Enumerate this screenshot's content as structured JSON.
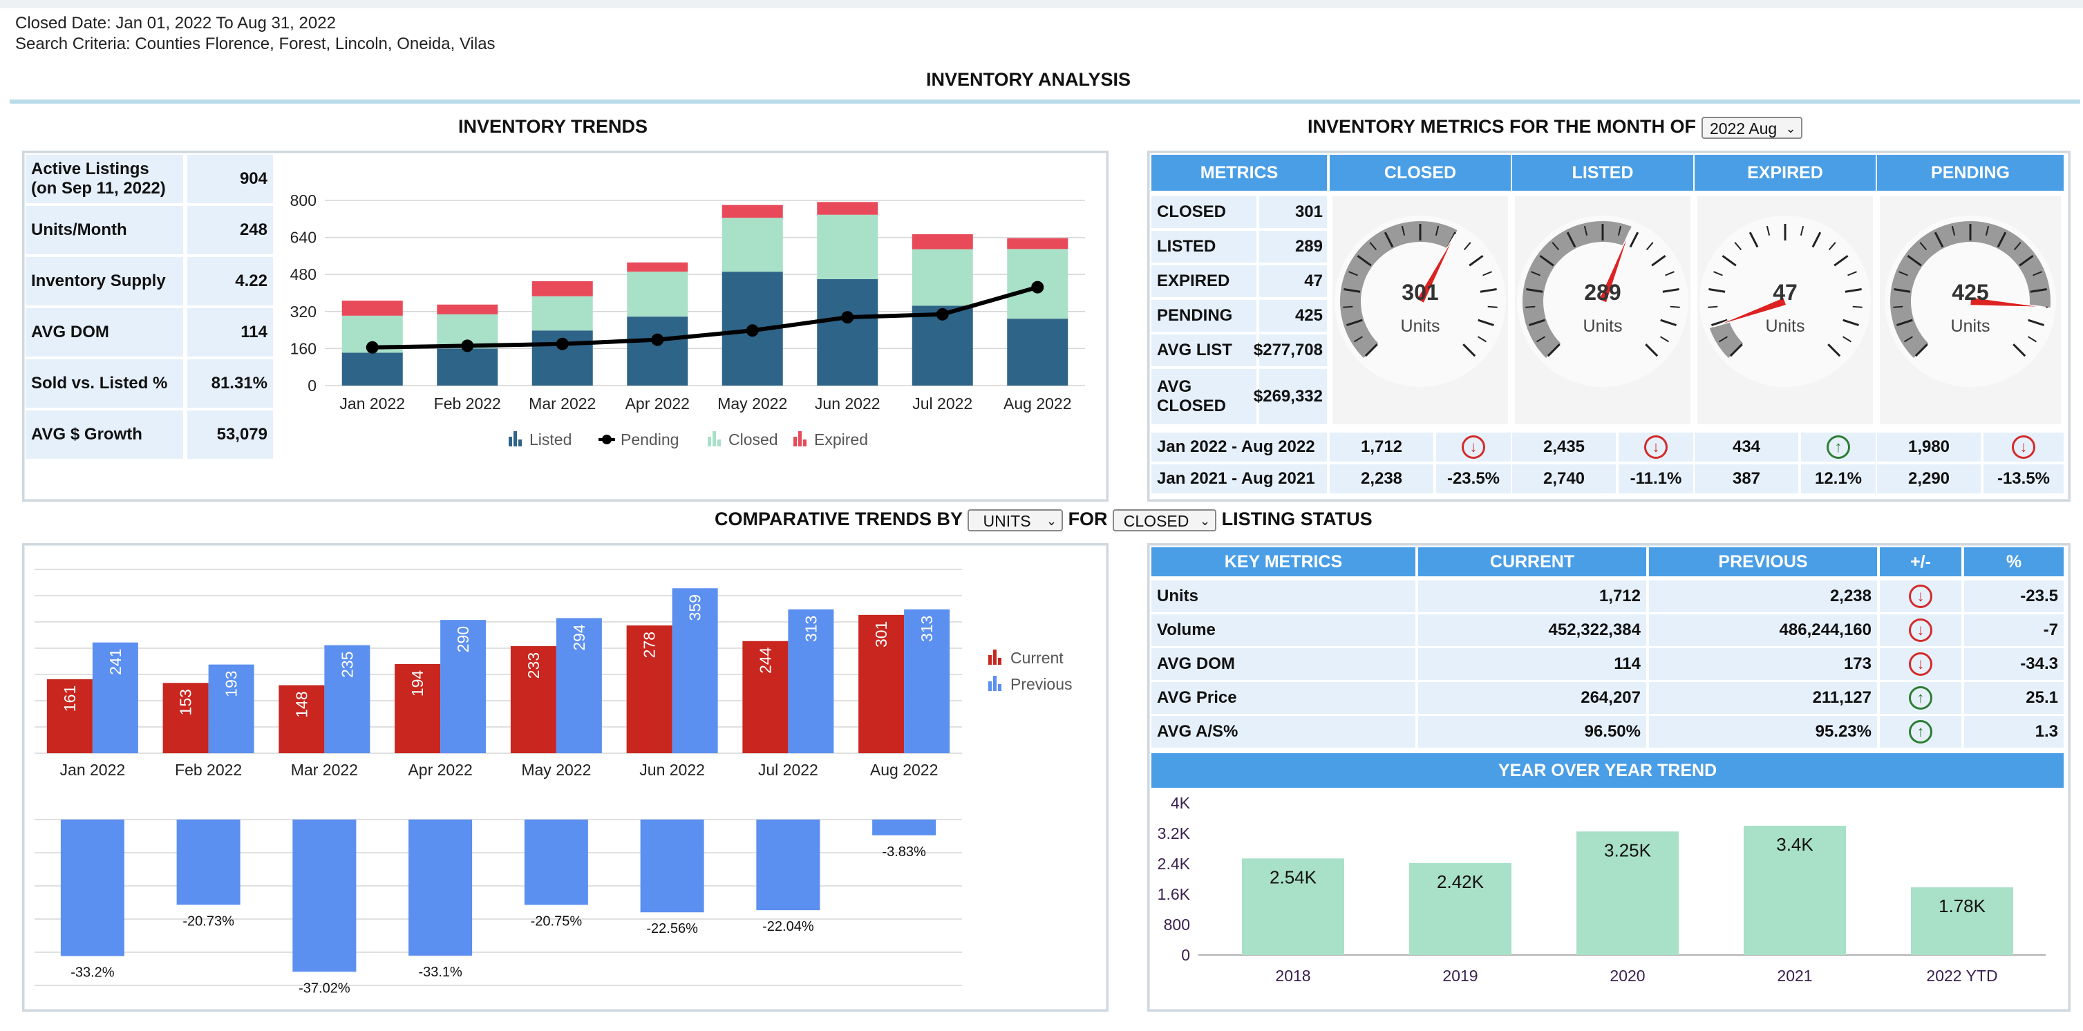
{
  "criteria": {
    "closed_date": "Closed Date: Jan 01, 2022 To Aug 31, 2022",
    "search": "Search Criteria:  Counties Florence, Forest, Lincoln, Oneida, Vilas"
  },
  "page_title": "INVENTORY ANALYSIS",
  "trends": {
    "title": "INVENTORY TRENDS",
    "metrics": [
      {
        "label": "Active Listings\n(on Sep 11, 2022)",
        "value": "904"
      },
      {
        "label": "Units/Month",
        "value": "248"
      },
      {
        "label": "Inventory Supply",
        "value": "4.22"
      },
      {
        "label": "AVG DOM",
        "value": "114"
      },
      {
        "label": "Sold vs. Listed %",
        "value": "81.31%"
      },
      {
        "label": "AVG $ Growth",
        "value": "53,079"
      }
    ]
  },
  "month_metrics": {
    "title": "INVENTORY METRICS FOR THE MONTH OF",
    "month_select": "2022 Aug",
    "headers": [
      "METRICS",
      "CLOSED",
      "LISTED",
      "EXPIRED",
      "PENDING"
    ],
    "rows": [
      {
        "label": "CLOSED",
        "value": "301"
      },
      {
        "label": "LISTED",
        "value": "289"
      },
      {
        "label": "EXPIRED",
        "value": "47"
      },
      {
        "label": "PENDING",
        "value": "425"
      },
      {
        "label": "AVG LIST",
        "value": "$277,708"
      },
      {
        "label": "AVG CLOSED",
        "value": "$269,332"
      }
    ],
    "gauges": [
      {
        "value": "301",
        "unit": "Units",
        "num": 301
      },
      {
        "value": "289",
        "unit": "Units",
        "num": 289
      },
      {
        "value": "47",
        "unit": "Units",
        "num": 47
      },
      {
        "value": "425",
        "unit": "Units",
        "num": 425
      }
    ],
    "gauge_max": 500,
    "period_rows": [
      {
        "label": "Jan 2022 - Aug 2022",
        "cells": [
          {
            "v": "1,712",
            "icon": "down"
          },
          {
            "v": "2,435",
            "icon": "down"
          },
          {
            "v": "434",
            "icon": "up"
          },
          {
            "v": "1,980",
            "icon": "down"
          }
        ]
      },
      {
        "label": "Jan 2021 - Aug 2021",
        "cells": [
          {
            "v": "2,238",
            "p": "-23.5%"
          },
          {
            "v": "2,740",
            "p": "-11.1%"
          },
          {
            "v": "387",
            "p": "12.1%"
          },
          {
            "v": "2,290",
            "p": "-13.5%"
          }
        ]
      }
    ]
  },
  "comparative": {
    "title_a": "COMPARATIVE TRENDS BY",
    "select_units": "UNITS",
    "title_b": "FOR",
    "select_status": "CLOSED",
    "title_c": "LISTING STATUS"
  },
  "key_metrics": {
    "headers": [
      "KEY METRICS",
      "CURRENT",
      "PREVIOUS",
      "+/-",
      "%"
    ],
    "rows": [
      {
        "label": "Units",
        "current": "1,712",
        "previous": "2,238",
        "icon": "down",
        "pct": "-23.5"
      },
      {
        "label": "Volume",
        "current": "452,322,384",
        "previous": "486,244,160",
        "icon": "down",
        "pct": "-7"
      },
      {
        "label": "AVG DOM",
        "current": "114",
        "previous": "173",
        "icon": "down",
        "pct": "-34.3"
      },
      {
        "label": "AVG Price",
        "current": "264,207",
        "previous": "211,127",
        "icon": "up",
        "pct": "25.1"
      },
      {
        "label": "AVG A/S%",
        "current": "96.50%",
        "previous": "95.23%",
        "icon": "up",
        "pct": "1.3"
      }
    ],
    "yoy_title": "YEAR OVER YEAR TREND"
  },
  "colors": {
    "listed": "#2e6488",
    "closed": "#a8e0c8",
    "expired": "#e84a5a",
    "pending": "#000000",
    "current": "#c8261e",
    "previous": "#5b8ff0",
    "yoy": "#a8e0c8",
    "header": "#4a9ee6",
    "cell_bg": "#e6f0fb"
  },
  "chart_data": [
    {
      "type": "bar",
      "categories": [
        "Jan 2022",
        "Feb 2022",
        "Mar 2022",
        "Apr 2022",
        "May 2022",
        "Jun 2022",
        "Jul 2022",
        "Aug 2022"
      ],
      "ylim": [
        0,
        800
      ],
      "yticks": [
        "0",
        "160",
        "320",
        "480",
        "640",
        "800"
      ],
      "series": [
        {
          "name": "Listed",
          "values": [
            142,
            160,
            238,
            298,
            492,
            460,
            345,
            289
          ]
        },
        {
          "name": "Closed",
          "values": [
            160,
            148,
            148,
            194,
            233,
            278,
            244,
            301
          ]
        },
        {
          "name": "Expired",
          "values": [
            65,
            42,
            65,
            40,
            55,
            55,
            65,
            47
          ]
        },
        {
          "name": "Pending",
          "values": [
            165,
            172,
            180,
            198,
            238,
            295,
            308,
            425
          ]
        }
      ],
      "legend": [
        "Listed",
        "Pending",
        "Closed",
        "Expired"
      ]
    },
    {
      "type": "bar",
      "categories": [
        "Jan 2022",
        "Feb 2022",
        "Mar 2022",
        "Apr 2022",
        "May 2022",
        "Jun 2022",
        "Jul 2022",
        "Aug 2022"
      ],
      "series": [
        {
          "name": "Current",
          "values": [
            161,
            153,
            148,
            194,
            233,
            278,
            244,
            301
          ]
        },
        {
          "name": "Previous",
          "values": [
            241,
            193,
            235,
            290,
            294,
            359,
            313,
            313
          ]
        }
      ],
      "legend": [
        "Current",
        "Previous"
      ]
    },
    {
      "type": "bar",
      "categories": [
        "Jan 2022",
        "Feb 2022",
        "Mar 2022",
        "Apr 2022",
        "May 2022",
        "Jun 2022",
        "Jul 2022",
        "Aug 2022"
      ],
      "values": [
        -33.2,
        -20.73,
        -37.02,
        -33.1,
        -20.75,
        -22.56,
        -22.04,
        -3.83
      ],
      "labels": [
        "-33.2%",
        "-20.73%",
        "-37.02%",
        "-33.1%",
        "-20.75%",
        "-22.56%",
        "-22.04%",
        "-3.83%"
      ]
    },
    {
      "type": "bar",
      "title": "YEAR OVER YEAR TREND",
      "categories": [
        "2018",
        "2019",
        "2020",
        "2021",
        "2022 YTD"
      ],
      "values": [
        2540,
        2420,
        3250,
        3400,
        1780
      ],
      "labels": [
        "2.54K",
        "2.42K",
        "3.25K",
        "3.4K",
        "1.78K"
      ],
      "ylim": [
        0,
        4000
      ],
      "yticks": [
        "0",
        "800",
        "1.6K",
        "2.4K",
        "3.2K",
        "4K"
      ]
    }
  ]
}
